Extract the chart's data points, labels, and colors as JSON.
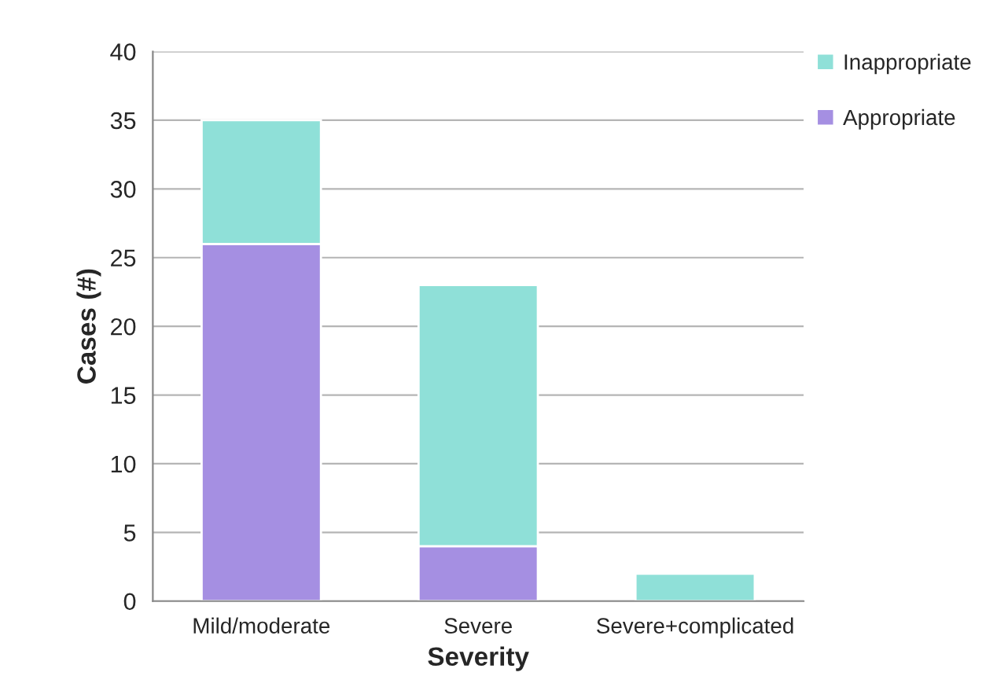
{
  "chart_data": {
    "type": "bar",
    "stacked": true,
    "xlabel": "Severity",
    "ylabel": "Cases (#)",
    "categories": [
      "Mild/moderate",
      "Severe",
      "Severe+complicated"
    ],
    "series": [
      {
        "name": "Appropriate",
        "color": "#a58fe2",
        "values": [
          26,
          4,
          0
        ]
      },
      {
        "name": "Inappropriate",
        "color": "#8fe0d8",
        "values": [
          9,
          19,
          2
        ]
      }
    ],
    "ylim": [
      0,
      40
    ],
    "yticks": [
      0,
      5,
      10,
      15,
      20,
      25,
      30,
      35,
      40
    ],
    "grid": "y",
    "legend": "top right"
  }
}
